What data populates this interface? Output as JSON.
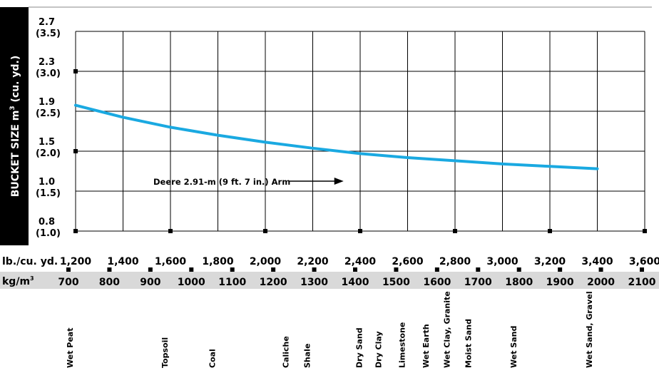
{
  "chart_data": {
    "type": "line",
    "title": "",
    "ylabel": "BUCKET SIZE m³ (cu. yd.)",
    "ylabel_parts": [
      "BUCKET SIZE m",
      "3",
      " (cu. yd.)"
    ],
    "x_unit_label": "lb./cu. yd.",
    "x_secondary_unit_label": "kg/m",
    "x_secondary_unit_sup": "3",
    "xlim": [
      1200,
      3600
    ],
    "ylim": [
      0.8,
      2.7
    ],
    "x_ticks": [
      "1,200",
      "1,400",
      "1,600",
      "1,800",
      "2,000",
      "2,200",
      "2,400",
      "2,600",
      "2,800",
      "3,000",
      "3,200",
      "3,400",
      "3,600"
    ],
    "y_ticks": [
      {
        "value": 2.7,
        "metric": "2.7",
        "imperial": "(3.5)"
      },
      {
        "value": 2.3,
        "metric": "2.3",
        "imperial": "(3.0)"
      },
      {
        "value": 1.9,
        "metric": "1.9",
        "imperial": "(2.5)"
      },
      {
        "value": 1.5,
        "metric": "1.5",
        "imperial": "(2.0)"
      },
      {
        "value": 1.0,
        "metric": "1.0",
        "imperial": "(1.5)"
      },
      {
        "value": 0.8,
        "metric": "0.8",
        "imperial": "(1.0)"
      }
    ],
    "kg_ticks": [
      "700",
      "800",
      "900",
      "1000",
      "1100",
      "1200",
      "1300",
      "1400",
      "1500",
      "1600",
      "1700",
      "1800",
      "1900",
      "2000",
      "2100"
    ],
    "series": [
      {
        "name": "Deere 2.91-m (9 ft. 7 in.) Arm",
        "color": "#1aa9e1",
        "x": [
          1200,
          1400,
          1600,
          1800,
          2000,
          2200,
          2400,
          2600,
          2800,
          3000,
          3200,
          3400
        ],
        "y": [
          1.96,
          1.84,
          1.74,
          1.66,
          1.59,
          1.53,
          1.47,
          1.42,
          1.38,
          1.34,
          1.31,
          1.28
        ]
      }
    ],
    "annotation": {
      "text": "Deere 2.91-m (9 ft. 7 in.) Arm",
      "points_to_x": 2330
    },
    "materials": [
      {
        "name": "Wet Peat",
        "lb": 1200
      },
      {
        "name": "Topsoil",
        "lb": 1600
      },
      {
        "name": "Coal",
        "lb": 1800
      },
      {
        "name": "Caliche",
        "lb": 2110
      },
      {
        "name": "Shale",
        "lb": 2200
      },
      {
        "name": "Dry Sand",
        "lb": 2420
      },
      {
        "name": "Dry Clay",
        "lb": 2500
      },
      {
        "name": "Limestone",
        "lb": 2600
      },
      {
        "name": "Wet Earth",
        "lb": 2700
      },
      {
        "name": "Wet Clay, Granite",
        "lb": 2790
      },
      {
        "name": "Moist Sand",
        "lb": 2880
      },
      {
        "name": "Wet Sand",
        "lb": 3070
      },
      {
        "name": "Wet Sand, Gravel",
        "lb": 3390
      }
    ],
    "grid": true,
    "colors": {
      "axis_panel": "#000000",
      "kg_band": "#d9d9d9",
      "line": "#1aa9e1"
    }
  }
}
